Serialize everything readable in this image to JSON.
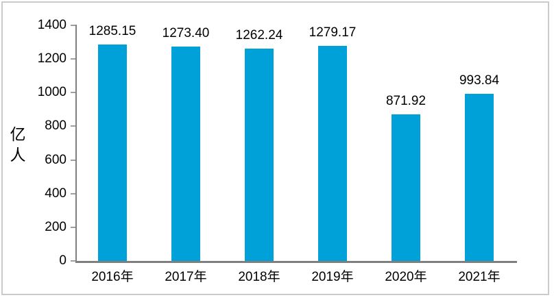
{
  "chart_data": {
    "type": "bar",
    "title": "",
    "xlabel": "",
    "ylabel": "亿人",
    "categories": [
      "2016年",
      "2017年",
      "2018年",
      "2019年",
      "2020年",
      "2021年"
    ],
    "values": [
      1285.15,
      1273.4,
      1262.24,
      1279.17,
      871.92,
      993.84
    ],
    "data_labels": [
      "1285.15",
      "1273.40",
      "1262.24",
      "1279.17",
      "871.92",
      "993.84"
    ],
    "ylim": [
      0,
      1400
    ],
    "ytick_interval": 200,
    "yticks": [
      "0",
      "200",
      "400",
      "600",
      "800",
      "1000",
      "1200",
      "1400"
    ],
    "grid": false,
    "legend_position": "none",
    "colors": {
      "bar": "#00A0D8",
      "axis": "#7F7F7F",
      "tick": "#9E9E9E",
      "text": "#000000",
      "frame": "#CACACA",
      "background": "#FFFFFF"
    }
  }
}
